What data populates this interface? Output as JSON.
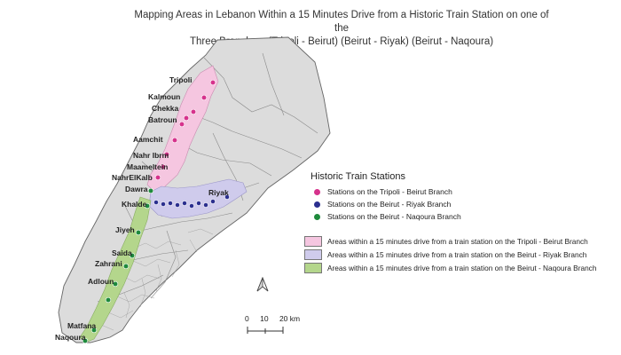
{
  "title": {
    "line1": "Mapping Areas in Lebanon Within a 15 Minutes Drive from a Historic Train Station on one of the",
    "line2": "Three Branches: (Tripoli - Beirut) (Beirut - Riyak) (Beirut - Naqoura)"
  },
  "cities": {
    "tripoli": "Tripoli",
    "kalmoun": "Kalmoun",
    "chekka": "Chekka",
    "batroun": "Batroun",
    "aamchit": "Aamchit",
    "nahr_ibrm": "Nahr Ibrm",
    "maameltein": "Maameltein",
    "nahrelkalb": "NahrElKalb",
    "dawra": "Dawra",
    "khalde": "Khalde",
    "riyak": "Riyak",
    "jiyeh": "Jiyeh",
    "saida": "Saida",
    "zahrani": "Zahrani",
    "adloun": "Adloun",
    "matfana": "Matfana",
    "naqoura": "Naqoura"
  },
  "legend": {
    "stations_title": "Historic Train Stations",
    "stations": [
      {
        "label": "Stations on the Tripoli - Beirut Branch",
        "color": "#d6328c"
      },
      {
        "label": "Stations on the Beirut - Riyak Branch",
        "color": "#2b2f8f"
      },
      {
        "label": "Stations on the Beirut - Naqoura Branch",
        "color": "#1e8a3c"
      }
    ],
    "areas": [
      {
        "label": "Areas within a 15 minutes drive from a train station on the Tripoli - Beirut Branch",
        "color": "#f5c6e0"
      },
      {
        "label": "Areas within a 15 minutes drive from a train station on the Beirut - Riyak Branch",
        "color": "#cfcbec"
      },
      {
        "label": "Areas within a 15 minutes drive from a train station on the Beirut - Naqoura Branch",
        "color": "#b4d68c"
      }
    ]
  },
  "scale_bar": {
    "t0": "0",
    "t10": "10",
    "t20": "20 km"
  },
  "map_colors": {
    "land": "#dcdcdc",
    "border": "#666666"
  }
}
